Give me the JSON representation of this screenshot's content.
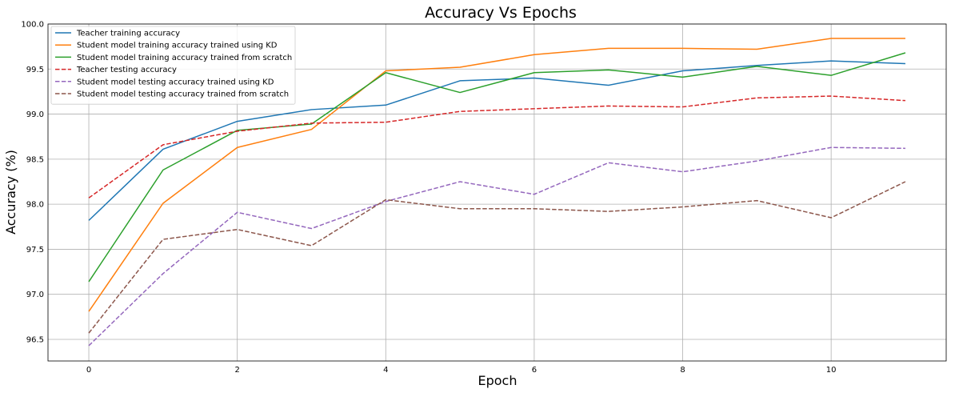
{
  "chart_data": {
    "type": "line",
    "title": "Accuracy Vs Epochs",
    "xlabel": "Epoch",
    "ylabel": "Accuracy (%)",
    "x": [
      0,
      1,
      2,
      3,
      4,
      5,
      6,
      7,
      8,
      9,
      10,
      11
    ],
    "xlim": [
      -0.55,
      11.55
    ],
    "ylim": [
      96.26,
      100.0
    ],
    "xticks": [
      0,
      2,
      4,
      6,
      8,
      10
    ],
    "yticks": [
      96.5,
      97.0,
      97.5,
      98.0,
      98.5,
      99.0,
      99.5,
      100.0
    ],
    "grid": true,
    "legend_position": "top-left",
    "series": [
      {
        "name": "Teacher training accuracy",
        "color": "#1f77b4",
        "dash": "solid",
        "values": [
          97.82,
          98.61,
          98.92,
          99.05,
          99.1,
          99.37,
          99.4,
          99.32,
          99.48,
          99.54,
          99.59,
          99.56
        ]
      },
      {
        "name": "Student model training accuracy trained using KD",
        "color": "#ff7f0e",
        "dash": "solid",
        "values": [
          96.81,
          98.01,
          98.63,
          98.83,
          99.48,
          99.52,
          99.66,
          99.73,
          99.73,
          99.72,
          99.84,
          99.84
        ]
      },
      {
        "name": "Student model training accuracy trained from scratch",
        "color": "#2ca02c",
        "dash": "solid",
        "values": [
          97.14,
          98.38,
          98.82,
          98.89,
          99.46,
          99.24,
          99.46,
          99.49,
          99.41,
          99.53,
          99.43,
          99.68
        ]
      },
      {
        "name": "Teacher testing accuracy",
        "color": "#d62728",
        "dash": "dashed",
        "values": [
          98.07,
          98.66,
          98.81,
          98.9,
          98.91,
          99.03,
          99.06,
          99.09,
          99.08,
          99.18,
          99.2,
          99.15
        ]
      },
      {
        "name": "Student model testing accuracy trained using KD",
        "color": "#9467bd",
        "dash": "dashed",
        "values": [
          96.43,
          97.23,
          97.91,
          97.73,
          98.03,
          98.25,
          98.11,
          98.46,
          98.36,
          98.48,
          98.63,
          98.62
        ]
      },
      {
        "name": "Student model testing accuracy trained from scratch",
        "color": "#8c564b",
        "dash": "dashed",
        "values": [
          96.57,
          97.61,
          97.72,
          97.54,
          98.05,
          97.95,
          97.95,
          97.92,
          97.97,
          98.04,
          97.85,
          98.25
        ]
      }
    ]
  }
}
